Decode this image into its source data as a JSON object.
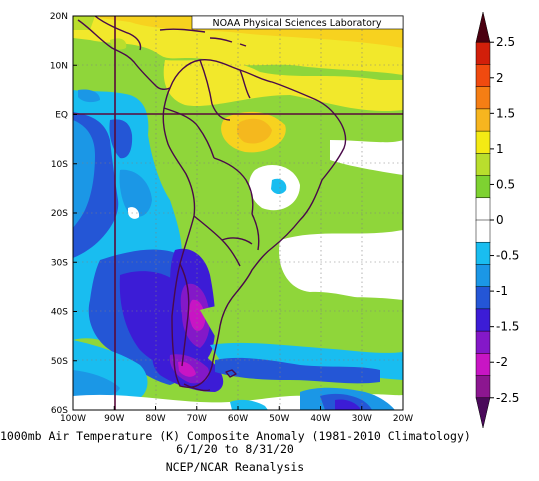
{
  "credit": "NOAA Physical Sciences Laboratory",
  "title_line1": "1000mb Air Temperature (K) Composite Anomaly (1981-2010 Climatology)",
  "title_line2": "6/1/20 to 8/31/20",
  "title_line3": "NCEP/NCAR Reanalysis",
  "lat_labels": [
    "20N",
    "10N",
    "EQ",
    "10S",
    "20S",
    "30S",
    "40S",
    "50S",
    "60S"
  ],
  "lon_labels": [
    "100W",
    "90W",
    "80W",
    "70W",
    "60W",
    "50W",
    "40W",
    "30W",
    "20W"
  ],
  "colorbar": {
    "labels": [
      "2.5",
      "2",
      "1.5",
      "1",
      "0.5",
      "0",
      "-0.5",
      "-1",
      "-1.5",
      "-2",
      "-2.5"
    ],
    "colors": [
      "#4a0010",
      "#d21f0a",
      "#f04a0f",
      "#f57e14",
      "#f7b51f",
      "#f4ea14",
      "#b9de2d",
      "#7ed231",
      "#ffffff",
      "#ffffff",
      "#19bdf0",
      "#1b97e6",
      "#2456d6",
      "#3c1cd6",
      "#8418c8",
      "#c815c4",
      "#8c1690",
      "#4a0a5a"
    ]
  },
  "grid_colors": {
    "land_outline": "#4a0a4a",
    "box_outline": "#5a0a3a"
  }
}
